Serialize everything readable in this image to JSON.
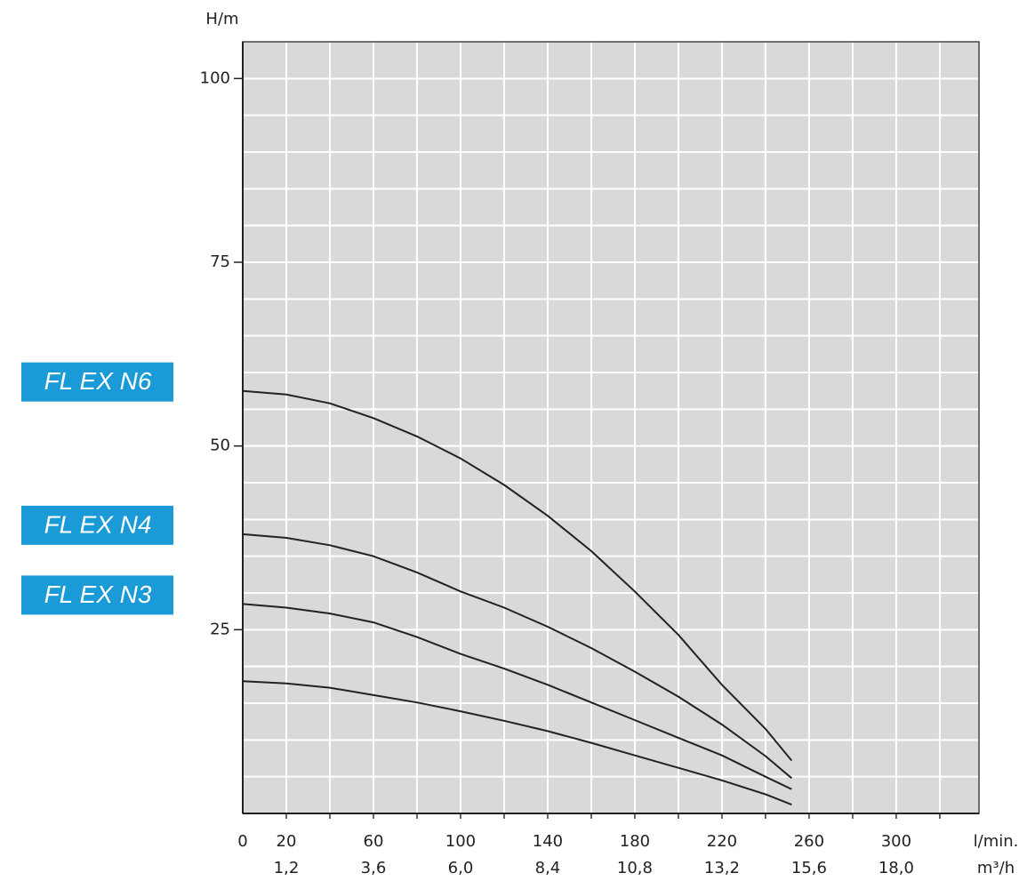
{
  "chart_data": {
    "type": "line",
    "y_label": "H/m",
    "x_label": "l/min.",
    "x2_label": "m³/h",
    "x": [
      0,
      20,
      40,
      60,
      80,
      100,
      120,
      140,
      160,
      180,
      200,
      220,
      240,
      252
    ],
    "series": [
      {
        "name": "FL EX N6",
        "color": "#222222",
        "label_color": "#1a9ad6",
        "values": [
          57.5,
          57,
          55.8,
          53.8,
          51.3,
          48.3,
          44.7,
          40.5,
          35.7,
          30.2,
          24.3,
          17.5,
          11.5,
          7.2
        ]
      },
      {
        "name": "FL EX N4",
        "color": "#222222",
        "label_color": "#1a9ad6",
        "values": [
          38,
          37.5,
          36.5,
          35,
          32.8,
          30.2,
          28,
          25.4,
          22.5,
          19.3,
          15.9,
          12.1,
          7.8,
          4.8
        ]
      },
      {
        "name": "FL EX N3",
        "color": "#222222",
        "label_color": "#1a9ad6",
        "values": [
          28.5,
          28,
          27.2,
          26,
          24,
          21.7,
          19.7,
          17.5,
          15.1,
          12.7,
          10.3,
          7.9,
          5,
          3.3
        ]
      },
      {
        "color": "#222222",
        "values": [
          18,
          17.7,
          17.1,
          16.1,
          15.1,
          13.9,
          12.6,
          11.2,
          9.6,
          7.9,
          6.2,
          4.5,
          2.6,
          1.2
        ]
      }
    ],
    "xlim": [
      0,
      338
    ],
    "ylim": [
      0,
      105
    ],
    "xticks": [
      0,
      20,
      60,
      100,
      140,
      180,
      220,
      260,
      300
    ],
    "x2lim": [
      0,
      20.28
    ],
    "x2ticks": [
      {
        "value": 1.2,
        "label": "1,2"
      },
      {
        "value": 3.6,
        "label": "3,6"
      },
      {
        "value": 6.0,
        "label": "6,0"
      },
      {
        "value": 8.4,
        "label": "8,4"
      },
      {
        "value": 10.8,
        "label": "10,8"
      },
      {
        "value": 13.2,
        "label": "13,2"
      },
      {
        "value": 15.6,
        "label": "15,6"
      },
      {
        "value": 18.0,
        "label": "18,0"
      }
    ],
    "yticks": [
      25,
      50,
      75,
      100
    ],
    "xgrid": [
      20,
      40,
      60,
      80,
      100,
      120,
      140,
      160,
      180,
      200,
      220,
      240,
      260,
      280,
      300,
      320
    ],
    "ygrid": [
      5,
      10,
      15,
      20,
      25,
      30,
      35,
      40,
      45,
      50,
      55,
      60,
      65,
      70,
      75,
      80,
      85,
      90,
      95,
      100
    ],
    "grid": true,
    "plot_background": "#d9d9d9",
    "grid_color": "#ffffff"
  }
}
